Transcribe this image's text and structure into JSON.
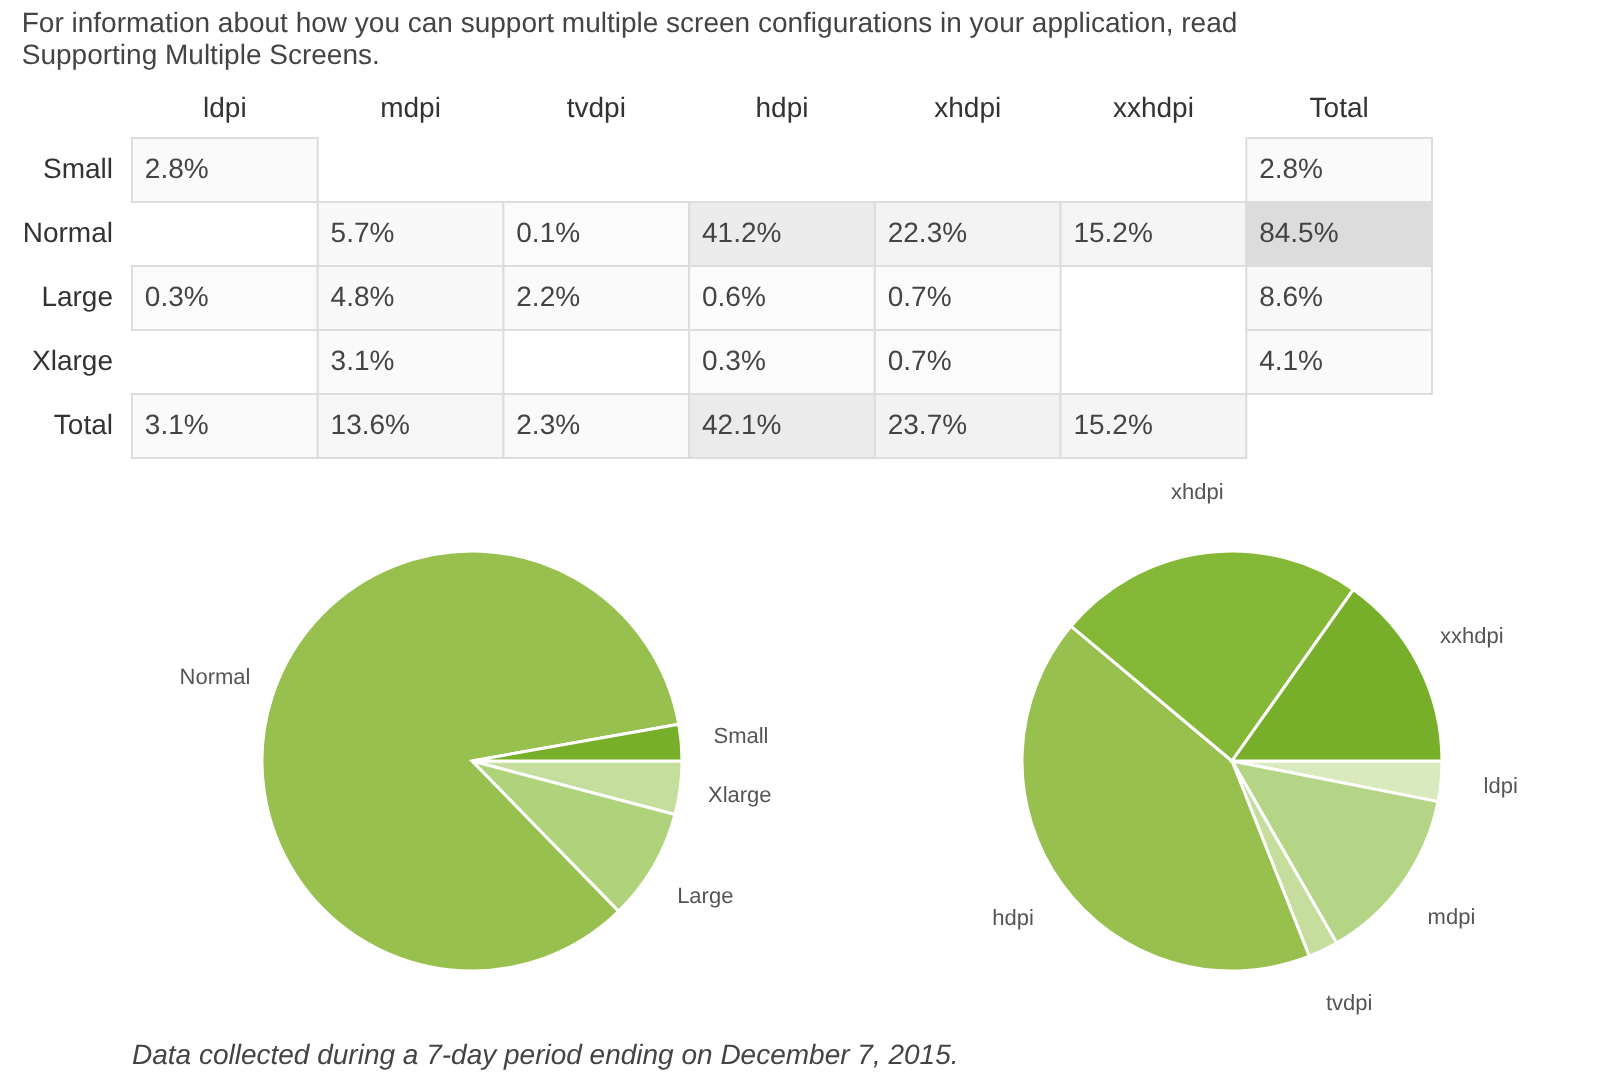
{
  "chart_data": [
    {
      "type": "heatmap",
      "annotations": [
        "For information about how you can support multiple screen configurations in your application, read Supporting Multiple Screens."
      ],
      "categories": [
        "ldpi",
        "mdpi",
        "tvdpi",
        "hdpi",
        "xhdpi",
        "xxhdpi",
        "Total"
      ],
      "y_categories": [
        "Small",
        "Normal",
        "Large",
        "Xlarge",
        "Total"
      ],
      "cells": [
        [
          2.8,
          null,
          null,
          null,
          null,
          null,
          2.8
        ],
        [
          null,
          5.7,
          0.1,
          41.2,
          22.3,
          15.2,
          84.5
        ],
        [
          0.3,
          4.8,
          2.2,
          0.6,
          0.7,
          null,
          8.6
        ],
        [
          null,
          3.1,
          null,
          0.3,
          0.7,
          null,
          4.1
        ],
        [
          3.1,
          13.6,
          2.3,
          42.1,
          23.7,
          15.2,
          null
        ]
      ],
      "cell_labels": [
        [
          "2.8%",
          null,
          null,
          null,
          null,
          null,
          "2.8%"
        ],
        [
          null,
          "5.7%",
          "0.1%",
          "41.2%",
          "22.3%",
          "15.2%",
          "84.5%"
        ],
        [
          "0.3%",
          "4.8%",
          "2.2%",
          "0.6%",
          "0.7%",
          null,
          "8.6%"
        ],
        [
          null,
          "3.1%",
          null,
          "0.3%",
          "0.7%",
          null,
          "4.1%"
        ],
        [
          "3.1%",
          "13.6%",
          "2.3%",
          "42.1%",
          "23.7%",
          "15.2%",
          null
        ]
      ]
    },
    {
      "type": "pie",
      "categories": [
        "Xlarge",
        "Large",
        "Normal",
        "Small"
      ],
      "values": [
        4.1,
        8.6,
        84.5,
        2.8
      ],
      "colors": [
        "#c5de9e",
        "#aed37a",
        "#97c04f",
        "#77ae2a"
      ],
      "legend": false
    },
    {
      "type": "pie",
      "categories": [
        "ldpi",
        "mdpi",
        "tvdpi",
        "hdpi",
        "xhdpi",
        "xxhdpi"
      ],
      "values": [
        3.1,
        13.6,
        2.3,
        42.1,
        23.7,
        15.2
      ],
      "colors": [
        "#d9ebbd",
        "#b3d585",
        "#c5de9e",
        "#97c04f",
        "#86b837",
        "#77ae2a"
      ],
      "legend": false,
      "annotations": [
        "Data collected during a 7-day period ending on December 7, 2015."
      ]
    }
  ]
}
